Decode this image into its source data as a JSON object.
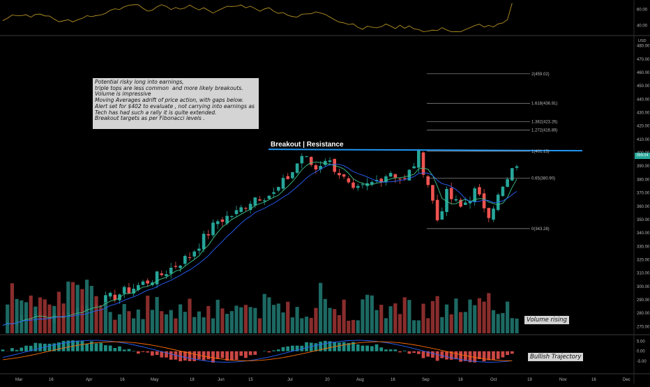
{
  "chart_data": {
    "type": "candlestick",
    "note_lines": [
      "Potential risky long into earnings,",
      "triple tops are less common  and more likely breakouts.",
      "Volume is impressive",
      "Moving Averages adrift of price action, with gaps below.",
      "Alert set for $402 to evaluate , not carrying into earnings as",
      "Tech has had such a rally it is quite extended.",
      "Breakout targets as per Fibonacci levels ."
    ],
    "resistance_label": "Breakout | Resistance",
    "volume_label": "Volume rising",
    "macd_label": "Bullish Trajectory",
    "currency": "USD",
    "last_price": "399.04",
    "price_axis": {
      "ticks": [
        "480.00",
        "470.00",
        "460.00",
        "450.00",
        "440.00",
        "430.00",
        "420.00",
        "410.00",
        "400.00",
        "390.00",
        "380.00",
        "370.00",
        "360.00",
        "350.00",
        "340.00",
        "330.00",
        "320.00",
        "310.00",
        "300.00",
        "290.00",
        "280.00",
        "270.00"
      ],
      "range": [
        265,
        485
      ]
    },
    "rsi_axis": {
      "ticks": [
        "60.00",
        "40.00"
      ],
      "range": [
        28,
        72
      ]
    },
    "macd_axis": {
      "ticks": [
        "5.00",
        "0.00",
        "-5.00"
      ],
      "range": [
        -11,
        8
      ]
    },
    "time_axis": [
      "Mar",
      "16",
      "Apr",
      "16",
      "May",
      "18",
      "Jun",
      "15",
      "Jul",
      "20",
      "Aug",
      "16",
      "Sep",
      "16",
      "Oct",
      "19",
      "Nov",
      "16",
      "Dec"
    ],
    "fib_levels": [
      {
        "label": "2(459.02)",
        "value": 459.02
      },
      {
        "label": "1.618(436.91)",
        "value": 436.91
      },
      {
        "label": "1.382(423.26)",
        "value": 423.26
      },
      {
        "label": "1.272(416.89)",
        "value": 416.89
      },
      {
        "label": "1(401.15)",
        "value": 401.15
      },
      {
        "label": "0.65(380.90)",
        "value": 380.9
      },
      {
        "label": "0(343.28)",
        "value": 343.28
      }
    ],
    "resistance_value": 401.5,
    "price_anchors": [
      [
        0,
        271
      ],
      [
        4,
        279
      ],
      [
        10,
        276
      ],
      [
        16,
        283
      ],
      [
        22,
        290
      ],
      [
        28,
        299
      ],
      [
        34,
        309
      ],
      [
        40,
        323
      ],
      [
        46,
        349
      ],
      [
        50,
        355
      ],
      [
        54,
        367
      ],
      [
        58,
        369
      ],
      [
        62,
        386
      ],
      [
        64,
        398
      ],
      [
        67,
        388
      ],
      [
        69,
        396
      ],
      [
        72,
        385
      ],
      [
        75,
        370
      ],
      [
        79,
        377
      ],
      [
        83,
        386
      ],
      [
        86,
        379
      ],
      [
        89,
        398
      ],
      [
        91,
        377
      ],
      [
        93,
        350
      ],
      [
        95,
        369
      ],
      [
        98,
        359
      ],
      [
        101,
        371
      ],
      [
        104,
        355
      ],
      [
        108,
        379
      ],
      [
        110,
        392
      ]
    ],
    "colors": {
      "up": "#26a69a",
      "down": "#ef5350",
      "resistance": "#2196f3",
      "rsi": "#c9a227",
      "macd": "#2962ff",
      "signal": "#ff6d00"
    }
  }
}
